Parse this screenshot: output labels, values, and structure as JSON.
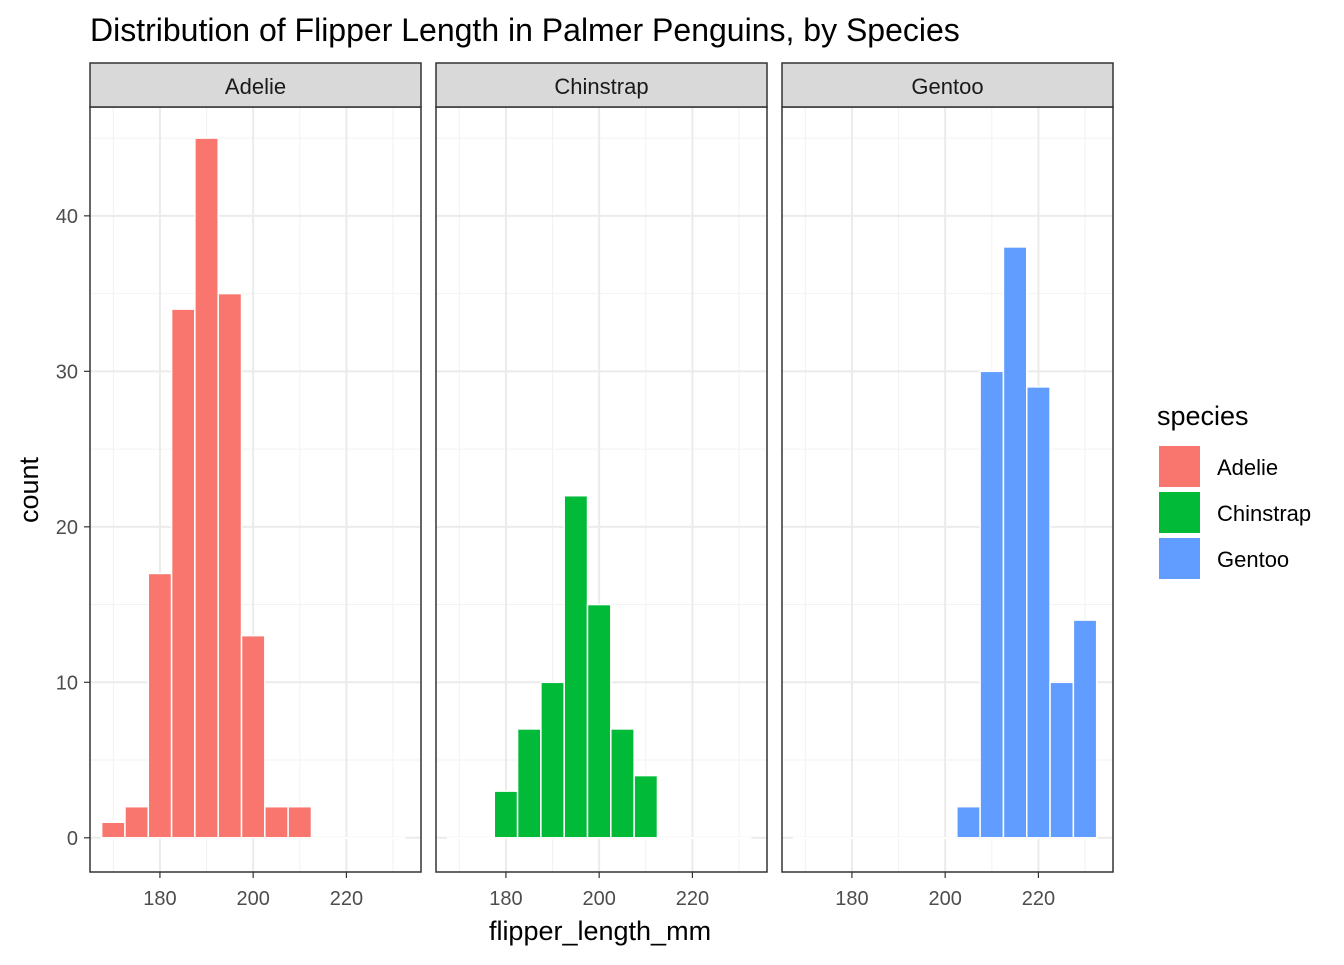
{
  "chart_data": {
    "type": "bar",
    "title": "Distribution of Flipper Length in Palmer Penguins, by Species",
    "xlabel": "flipper_length_mm",
    "ylabel": "count",
    "xlim": [
      165,
      236
    ],
    "ylim": [
      -2.2,
      47
    ],
    "x_ticks": [
      180,
      200,
      220
    ],
    "y_ticks": [
      0,
      10,
      20,
      30,
      40
    ],
    "x_tick_labels": [
      "180",
      "200",
      "220"
    ],
    "y_tick_labels": [
      "0",
      "10",
      "20",
      "30",
      "40"
    ],
    "bin_width": 5,
    "bin_centers": [
      170,
      175,
      180,
      185,
      190,
      195,
      200,
      205,
      210,
      215,
      220,
      225,
      230
    ],
    "grid": true,
    "legend": {
      "title": "species",
      "position": "right"
    },
    "facets": [
      {
        "name": "Adelie",
        "color": "#F8766D",
        "values": [
          1,
          2,
          17,
          34,
          45,
          35,
          13,
          2,
          2,
          0,
          0,
          0,
          0
        ]
      },
      {
        "name": "Chinstrap",
        "color": "#00BA38",
        "values": [
          0,
          0,
          3,
          7,
          10,
          22,
          15,
          7,
          4,
          0,
          0,
          0,
          0
        ]
      },
      {
        "name": "Gentoo",
        "color": "#619CFF",
        "values": [
          0,
          0,
          0,
          0,
          0,
          0,
          0,
          2,
          30,
          38,
          29,
          10,
          14
        ]
      }
    ]
  }
}
